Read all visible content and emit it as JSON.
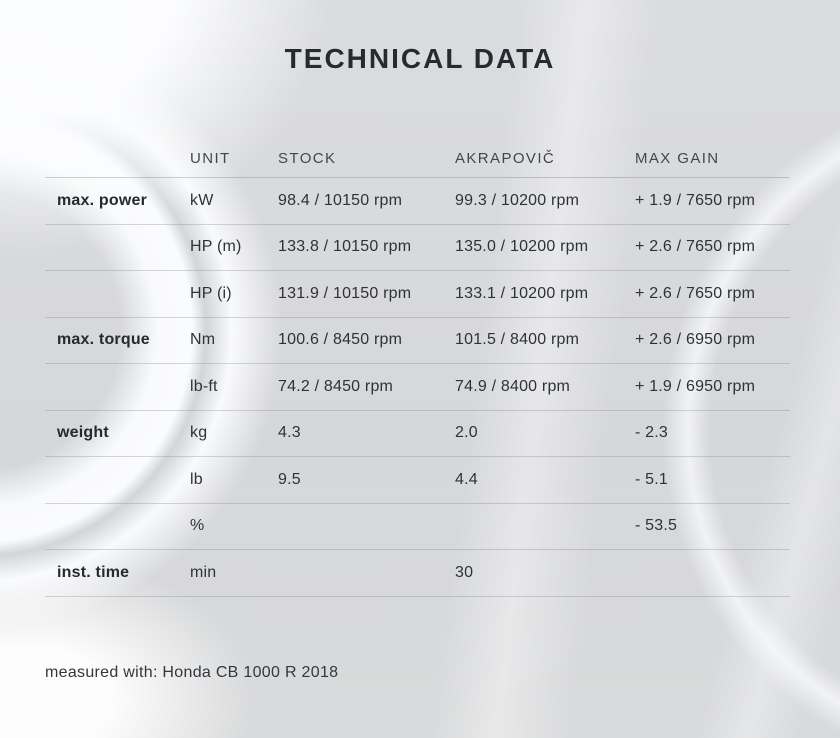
{
  "title": "TECHNICAL DATA",
  "note": "measured with: Honda CB 1000 R 2018",
  "colors": {
    "title_text": "#262b32",
    "header_text": "#41464d",
    "body_text": "#2e3238",
    "label_text": "#26292e",
    "divider": "#9fa5ab",
    "background": "#d8d9db",
    "background_highlight": "#fbfcfd"
  },
  "table": {
    "headers": [
      "UNIT",
      "STOCK",
      "AKRAPOVIČ",
      "MAX GAIN"
    ],
    "rows": [
      {
        "label": "max. power",
        "unit": "kW",
        "stock": "98.4 / 10150 rpm",
        "akrapovic": "99.3 / 10200 rpm",
        "max_gain": "+ 1.9 / 7650 rpm"
      },
      {
        "label": "",
        "unit": "HP (m)",
        "stock": "133.8 / 10150 rpm",
        "akrapovic": "135.0 / 10200 rpm",
        "max_gain": "+ 2.6 / 7650 rpm"
      },
      {
        "label": "",
        "unit": "HP (i)",
        "stock": "131.9 / 10150 rpm",
        "akrapovic": "133.1 / 10200 rpm",
        "max_gain": "+ 2.6 / 7650 rpm"
      },
      {
        "label": "max. torque",
        "unit": "Nm",
        "stock": "100.6 / 8450 rpm",
        "akrapovic": "101.5 / 8400 rpm",
        "max_gain": "+ 2.6 / 6950 rpm"
      },
      {
        "label": "",
        "unit": "lb-ft",
        "stock": "74.2 / 8450 rpm",
        "akrapovic": "74.9 / 8400 rpm",
        "max_gain": "+ 1.9 / 6950 rpm"
      },
      {
        "label": "weight",
        "unit": "kg",
        "stock": "4.3",
        "akrapovic": "2.0",
        "max_gain": "- 2.3"
      },
      {
        "label": "",
        "unit": "lb",
        "stock": "9.5",
        "akrapovic": "4.4",
        "max_gain": "- 5.1"
      },
      {
        "label": "",
        "unit": "%",
        "stock": "",
        "akrapovic": "",
        "max_gain": "- 53.5"
      },
      {
        "label": "inst. time",
        "unit": "min",
        "stock": "",
        "akrapovic": "30",
        "max_gain": ""
      }
    ]
  }
}
